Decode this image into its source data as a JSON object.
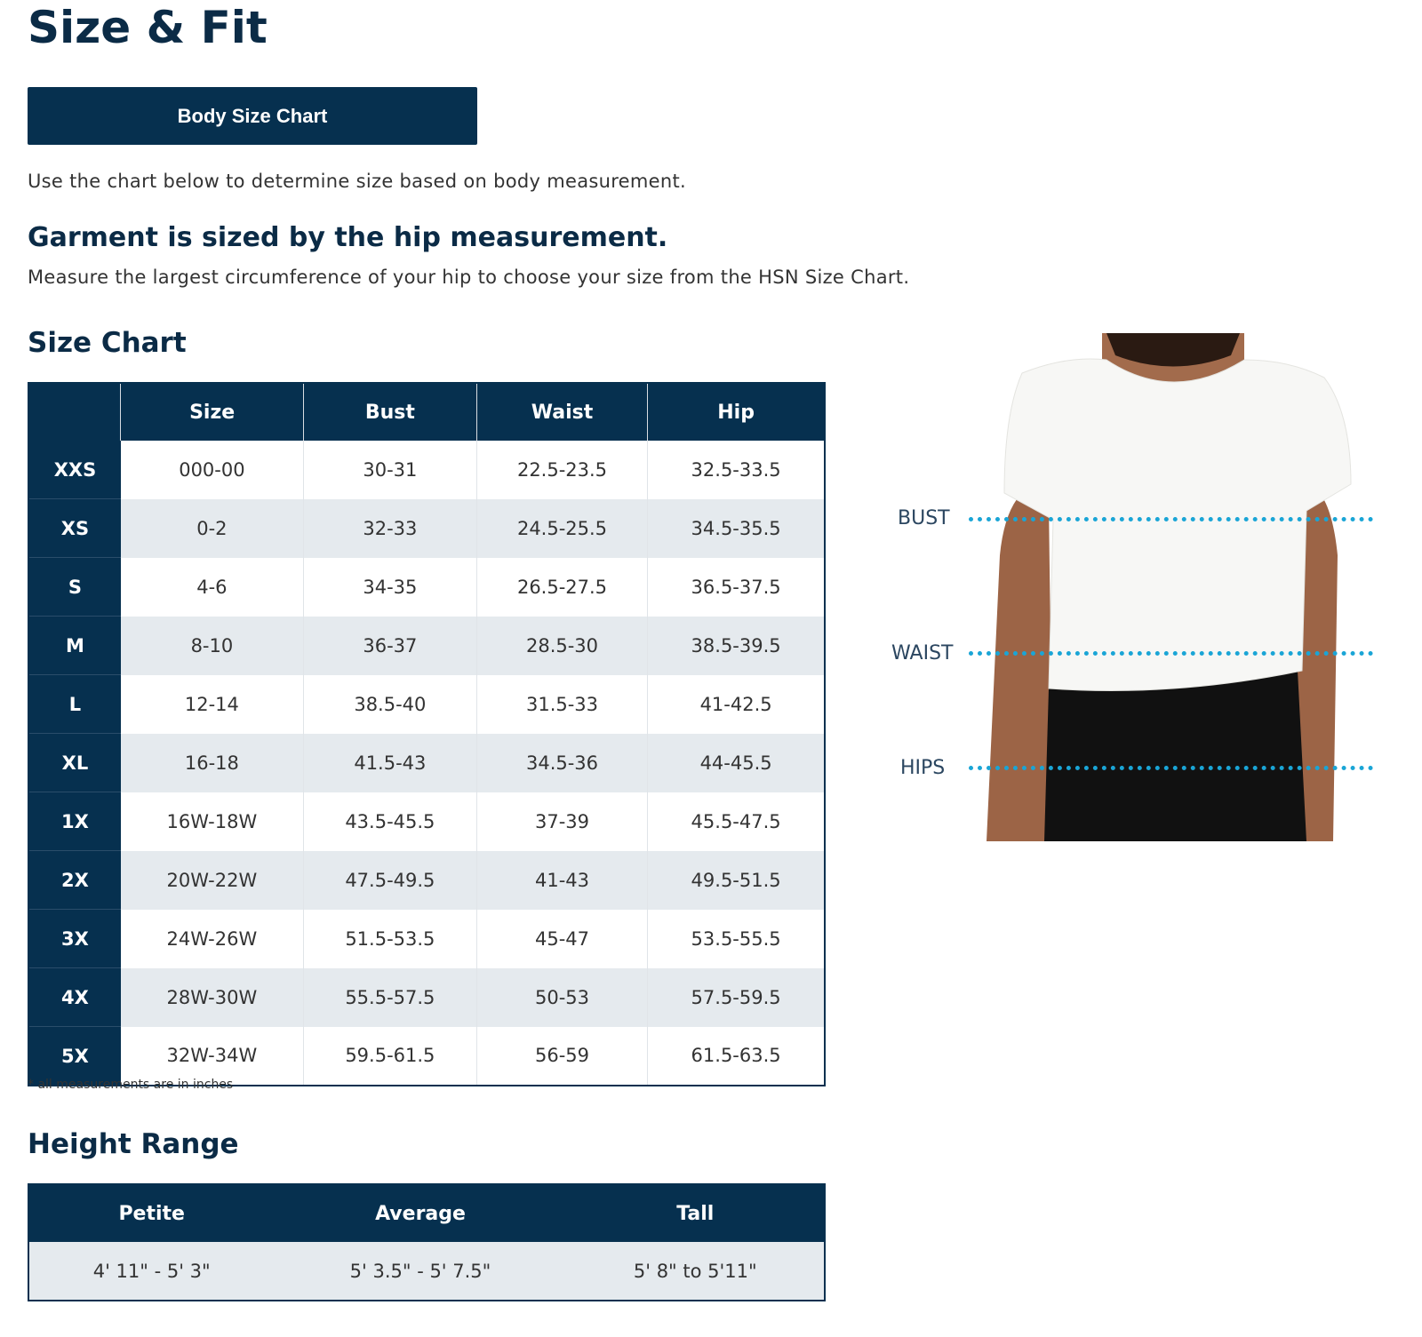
{
  "page": {
    "title": "Size & Fit",
    "tab_button": "Body Size Chart",
    "intro": "Use the chart below to determine size based on body measurement.",
    "fit_heading": "Garment is sized by the hip measurement.",
    "fit_text": "Measure the largest circumference of your hip to choose your size from the HSN Size Chart."
  },
  "size_chart": {
    "heading": "Size Chart",
    "columns": [
      "",
      "Size",
      "Bust",
      "Waist",
      "Hip"
    ],
    "rows": [
      [
        "XXS",
        "000-00",
        "30-31",
        "22.5-23.5",
        "32.5-33.5"
      ],
      [
        "XS",
        "0-2",
        "32-33",
        "24.5-25.5",
        "34.5-35.5"
      ],
      [
        "S",
        "4-6",
        "34-35",
        "26.5-27.5",
        "36.5-37.5"
      ],
      [
        "M",
        "8-10",
        "36-37",
        "28.5-30",
        "38.5-39.5"
      ],
      [
        "L",
        "12-14",
        "38.5-40",
        "31.5-33",
        "41-42.5"
      ],
      [
        "XL",
        "16-18",
        "41.5-43",
        "34.5-36",
        "44-45.5"
      ],
      [
        "1X",
        "16W-18W",
        "43.5-45.5",
        "37-39",
        "45.5-47.5"
      ],
      [
        "2X",
        "20W-22W",
        "47.5-49.5",
        "41-43",
        "49.5-51.5"
      ],
      [
        "3X",
        "24W-26W",
        "51.5-53.5",
        "45-47",
        "53.5-55.5"
      ],
      [
        "4X",
        "28W-30W",
        "55.5-57.5",
        "50-53",
        "57.5-59.5"
      ],
      [
        "5X",
        "32W-34W",
        "59.5-61.5",
        "56-59",
        "61.5-63.5"
      ]
    ],
    "note": "* all measurements are in inches"
  },
  "height_range": {
    "heading": "Height Range",
    "columns": [
      "Petite",
      "Average",
      "Tall"
    ],
    "values": [
      "4' 11\" - 5' 3\"",
      "5' 3.5\" - 5' 7.5\"",
      "5' 8\" to 5'11\""
    ]
  },
  "figure": {
    "labels": [
      "BUST",
      "WAIST",
      "HIPS"
    ]
  },
  "colors": {
    "navy": "#06304f",
    "alt_row": "#e5eaee",
    "dots": "#1aa5d6"
  }
}
